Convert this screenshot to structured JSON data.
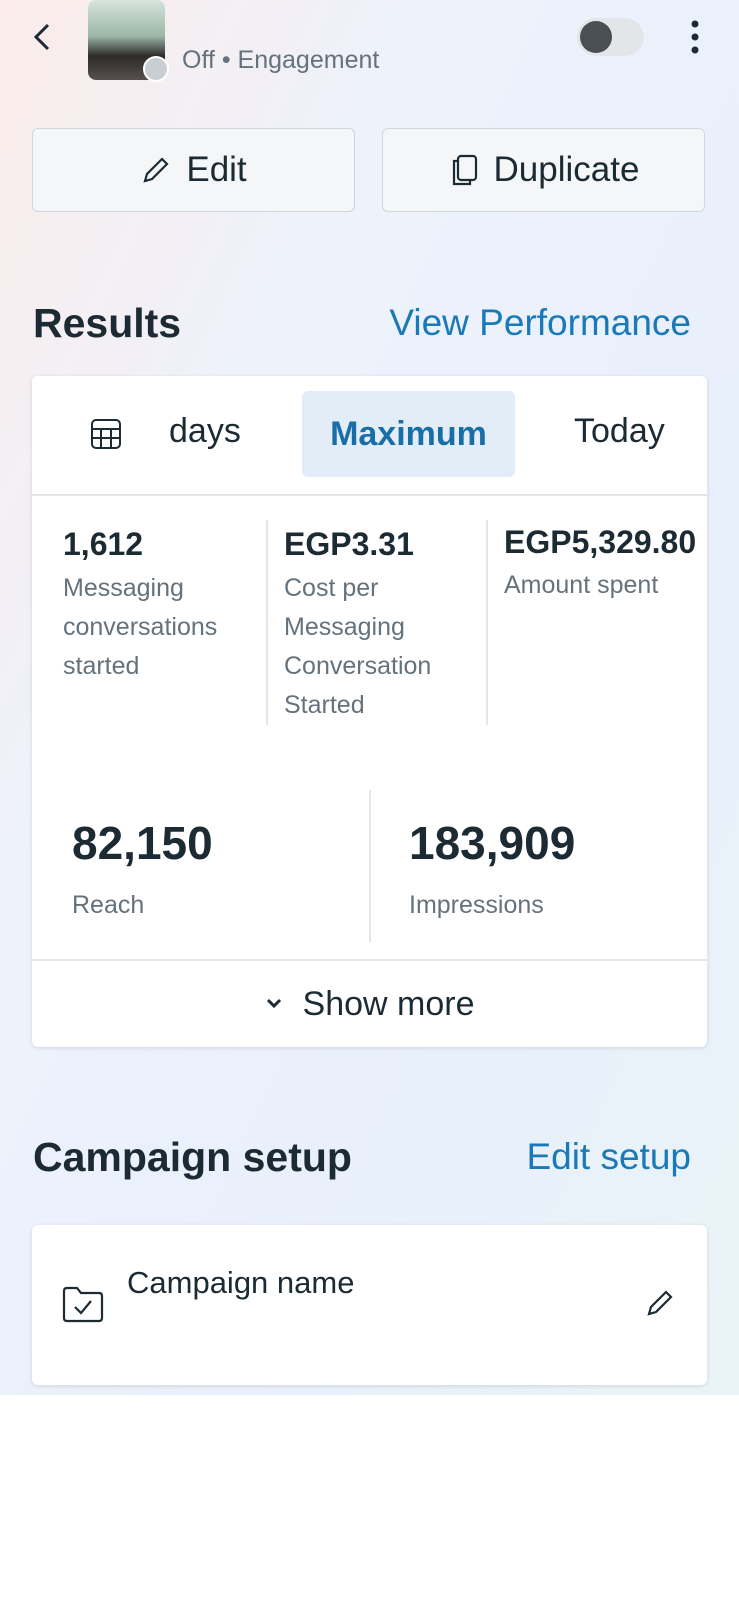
{
  "header": {
    "status": "Off",
    "objective": "Engagement"
  },
  "actions": {
    "edit": "Edit",
    "duplicate": "Duplicate"
  },
  "results": {
    "title": "Results",
    "link": "View Performance",
    "tabs": [
      "days",
      "Maximum",
      "Today"
    ],
    "metrics": [
      {
        "value": "1,612",
        "label": "Messaging conversations started"
      },
      {
        "value": "EGP3.31",
        "label": "Cost per Messaging Conversation Started"
      },
      {
        "value": "EGP5,329.80",
        "label": "Amount spent"
      }
    ],
    "big_metrics": [
      {
        "value": "82,150",
        "label": "Reach"
      },
      {
        "value": "183,909",
        "label": "Impressions"
      }
    ],
    "show_more": "Show more"
  },
  "setup": {
    "title": "Campaign setup",
    "link": "Edit setup",
    "field": "Campaign name"
  }
}
